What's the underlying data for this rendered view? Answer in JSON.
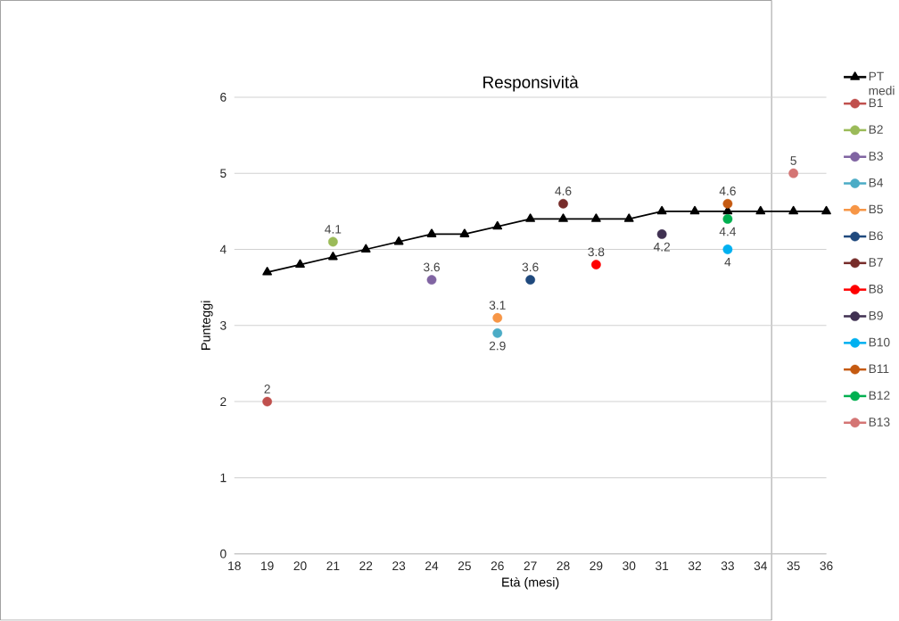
{
  "chart_data": {
    "type": "line",
    "title": "Responsività",
    "xlabel": "Età (mesi)",
    "ylabel": "Punteggi",
    "xlim": [
      18,
      36
    ],
    "xticks": [
      18,
      19,
      20,
      21,
      22,
      23,
      24,
      25,
      26,
      27,
      28,
      29,
      30,
      31,
      32,
      33,
      34,
      35,
      36
    ],
    "ylim": [
      0,
      6
    ],
    "yticks": [
      0,
      1,
      2,
      3,
      4,
      5,
      6
    ],
    "grid": "y",
    "legend": "right",
    "series": [
      {
        "name": "PT medi",
        "marker": "triangle",
        "color": "#000000",
        "x": [
          19,
          20,
          21,
          22,
          23,
          24,
          25,
          26,
          27,
          28,
          29,
          30,
          31,
          32,
          33,
          34,
          35,
          36
        ],
        "values": [
          3.7,
          3.8,
          3.9,
          4.0,
          4.1,
          4.2,
          4.2,
          4.3,
          4.4,
          4.4,
          4.4,
          4.4,
          4.5,
          4.5,
          4.5,
          4.5,
          4.5,
          4.5
        ]
      },
      {
        "name": "B1",
        "type": "scatter",
        "marker": "circle",
        "color": "#c0504d",
        "x": [
          19
        ],
        "values": [
          2
        ],
        "value_labels": [
          "2"
        ]
      },
      {
        "name": "B2",
        "type": "scatter",
        "marker": "circle",
        "color": "#9bbb59",
        "x": [
          21
        ],
        "values": [
          4.1
        ],
        "value_labels": [
          "4.1"
        ]
      },
      {
        "name": "B3",
        "type": "scatter",
        "marker": "circle",
        "color": "#8064a2",
        "x": [
          24
        ],
        "values": [
          3.6
        ],
        "value_labels": [
          "3.6"
        ]
      },
      {
        "name": "B4",
        "type": "scatter",
        "marker": "circle",
        "color": "#4bacc6",
        "x": [
          26
        ],
        "values": [
          2.9
        ],
        "value_labels": [
          "2.9"
        ]
      },
      {
        "name": "B5",
        "type": "scatter",
        "marker": "circle",
        "color": "#f79646",
        "x": [
          26
        ],
        "values": [
          3.1
        ],
        "value_labels": [
          "3.1"
        ]
      },
      {
        "name": "B6",
        "type": "scatter",
        "marker": "circle",
        "color": "#1f497d",
        "x": [
          27
        ],
        "values": [
          3.6
        ],
        "value_labels": [
          "3.6"
        ]
      },
      {
        "name": "B7",
        "type": "scatter",
        "marker": "circle",
        "color": "#772c2a",
        "x": [
          28
        ],
        "values": [
          4.6
        ],
        "value_labels": [
          "4.6"
        ]
      },
      {
        "name": "B8",
        "type": "scatter",
        "marker": "circle",
        "color": "#ff0000",
        "x": [
          29
        ],
        "values": [
          3.8
        ],
        "value_labels": [
          "3.8"
        ]
      },
      {
        "name": "B9",
        "type": "scatter",
        "marker": "circle",
        "color": "#403152",
        "x": [
          31
        ],
        "values": [
          4.2
        ],
        "value_labels": [
          "4.2"
        ]
      },
      {
        "name": "B10",
        "type": "scatter",
        "marker": "circle",
        "color": "#00b0f0",
        "x": [
          33
        ],
        "values": [
          4
        ],
        "value_labels": [
          "4"
        ]
      },
      {
        "name": "B11",
        "type": "scatter",
        "marker": "circle",
        "color": "#c55a11",
        "x": [
          33
        ],
        "values": [
          4.6
        ],
        "value_labels": [
          "4.6"
        ]
      },
      {
        "name": "B12",
        "type": "scatter",
        "marker": "circle",
        "color": "#00b050",
        "x": [
          33
        ],
        "values": [
          4.4
        ],
        "value_labels": [
          "4.4"
        ]
      },
      {
        "name": "B13",
        "type": "scatter",
        "marker": "circle",
        "color": "#d47574",
        "x": [
          35
        ],
        "values": [
          5
        ],
        "value_labels": [
          "5"
        ]
      }
    ]
  }
}
